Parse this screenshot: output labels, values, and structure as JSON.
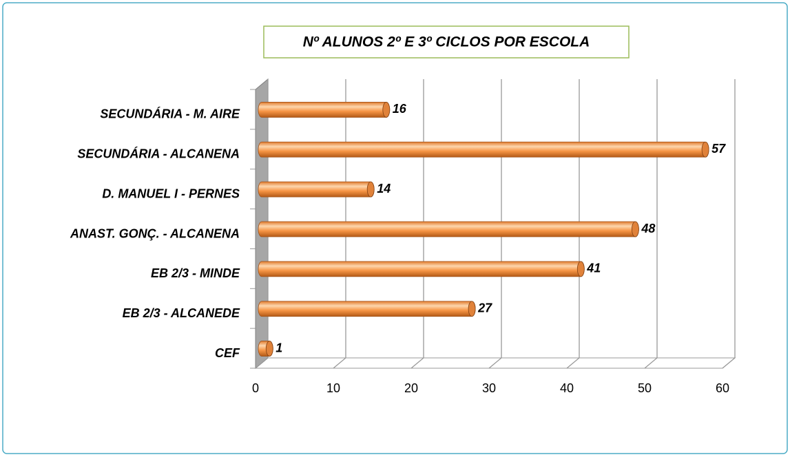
{
  "chart_data": {
    "type": "bar",
    "orientation": "horizontal",
    "title": "Nº ALUNOS 2º E 3º CICLOS POR ESCOLA",
    "categories": [
      "SECUNDÁRIA - M. AIRE",
      "SECUNDÁRIA - ALCANENA",
      "D. MANUEL I - PERNES",
      "ANAST. GONÇ. - ALCANENA",
      "EB 2/3 - MINDE",
      "EB 2/3 - ALCANEDE",
      "CEF"
    ],
    "values": [
      16,
      57,
      14,
      48,
      41,
      27,
      1
    ],
    "color": "#f79646",
    "xlim": [
      0,
      60
    ],
    "xticks": [
      0,
      10,
      20,
      30,
      40,
      50,
      60
    ],
    "grid": true
  }
}
